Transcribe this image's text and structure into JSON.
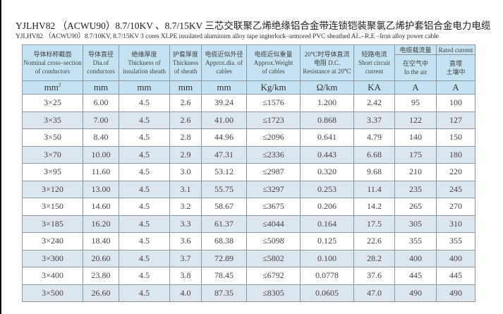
{
  "title_cn": "YJLHV82 （ACWU90）8.7/10KV 、8.7/15KV  三芯交联聚乙烯绝缘铝合金带连锁铠装聚氯乙烯护套铝合金电力电缆",
  "title_en": "YJLHV82 （ACWU90）8.7/10KV, 8.7/15KV  3 cores XLPE insulated aluminum alloy tape ingterlock–armored PVC sheathed AL.–R.E –Iron alloy power cable",
  "headers": [
    {
      "cn": "导体标称截面",
      "en1": "Nominal cross–section",
      "en2": "of conductors"
    },
    {
      "cn": "导体直径",
      "en1": "Dia.of",
      "en2": "conductors"
    },
    {
      "cn": "绝缘厚度",
      "en1": "Thickness of",
      "en2": "insulation sheath"
    },
    {
      "cn": "护套厚度",
      "en1": "Thickness",
      "en2": "of sheath"
    },
    {
      "cn": "电缆近似外径",
      "en1": "Approx.dia. of",
      "en2": "cables"
    },
    {
      "cn": "电缆近似重量",
      "en1": "Approx.Weight",
      "en2": "of cables"
    },
    {
      "cn": "20℃时导体直流",
      "en1": "电阻 D.C.",
      "en2": "Resistance at 20℃"
    },
    {
      "cn": "短路电流",
      "en1": "Short circuit",
      "en2": "current"
    }
  ],
  "current_header": {
    "cn": "电缆载流量",
    "en": "Rated current",
    "air_cn": "在空气中",
    "air_en": "In the air",
    "soil1": "直埋",
    "soil2": "土壤中"
  },
  "units": [
    "mm",
    "mm",
    "mm",
    "mm",
    "mm",
    "Kg/km",
    "Ω/km",
    "KA",
    "A",
    "A"
  ],
  "unit_sup": "2",
  "rows": [
    [
      "3×25",
      "6.00",
      "4.5",
      "2.6",
      "39.24",
      "≤1576",
      "1.200",
      "2.42",
      "95",
      "100"
    ],
    [
      "3×35",
      "7.00",
      "4.5",
      "2.6",
      "41.00",
      "≤1723",
      "0.868",
      "3.37",
      "122",
      "127"
    ],
    [
      "3×50",
      "8.40",
      "4.5",
      "2.8",
      "44.96",
      "≤2096",
      "0.641",
      "4.79",
      "140",
      "150"
    ],
    [
      "3×70",
      "10.00",
      "4.5",
      "2.9",
      "47.31",
      "≤2336",
      "0.443",
      "6.68",
      "175",
      "180"
    ],
    [
      "3×95",
      "11.60",
      "4.5",
      "3.0",
      "53.12",
      "≤2987",
      "0.320",
      "9.68",
      "210",
      "220"
    ],
    [
      "3×120",
      "13.00",
      "4.5",
      "3.1",
      "55.75",
      "≤3297",
      "0.253",
      "11.4",
      "235",
      "245"
    ],
    [
      "3×150",
      "14.60",
      "4.5",
      "3.2",
      "58.67",
      "≤3675",
      "0.206",
      "14.2",
      "265",
      "270"
    ],
    [
      "3×185",
      "16.20",
      "4.5",
      "3.3",
      "61.37",
      "≤4044",
      "0.164",
      "17.5",
      "305",
      "310"
    ],
    [
      "3×240",
      "18.40",
      "4.5",
      "3.6",
      "68.38",
      "≤5098",
      "0.125",
      "22.6",
      "355",
      "355"
    ],
    [
      "3×300",
      "20.60",
      "4.5",
      "3.7",
      "72.89",
      "≤5802",
      "0.100",
      "28.2",
      "400",
      "400"
    ],
    [
      "3×400",
      "23.80",
      "4.5",
      "3.8",
      "78.45",
      "≤6792",
      "0.0778",
      "37.6",
      "445",
      "445"
    ],
    [
      "3×500",
      "26.60",
      "4.5",
      "4.0",
      "87.35",
      "≤8305",
      "0.0605",
      "47.0",
      "490",
      "490"
    ]
  ]
}
